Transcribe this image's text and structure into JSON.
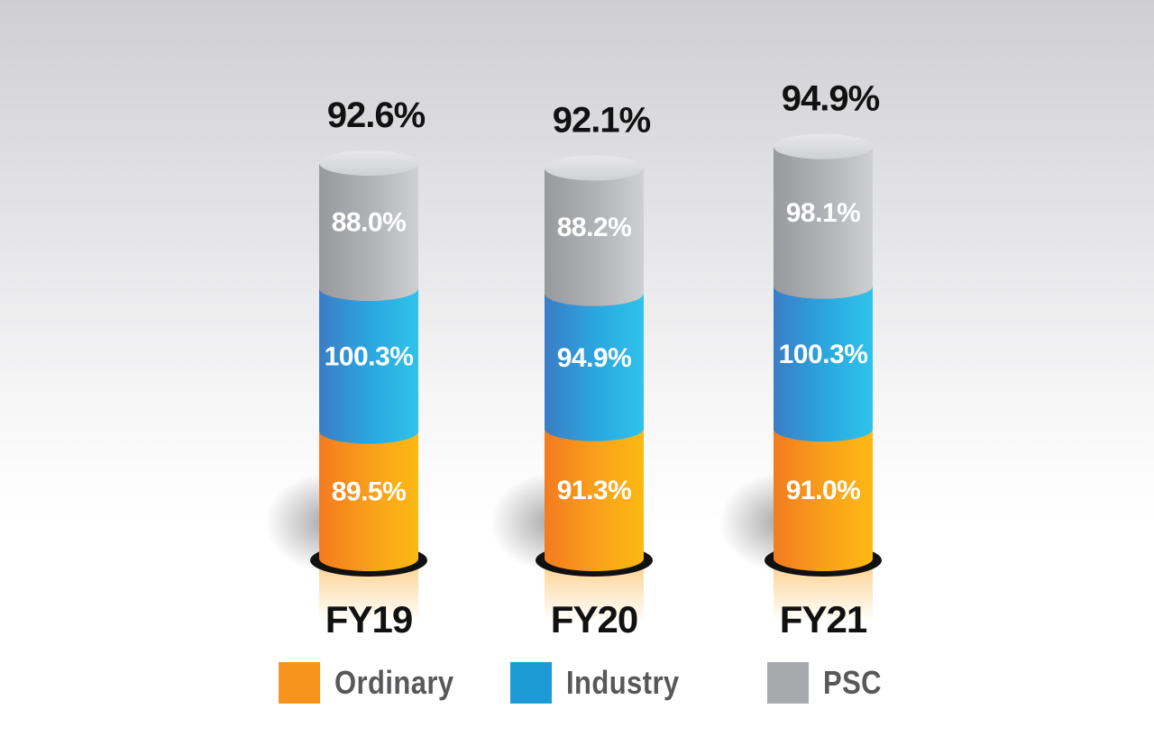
{
  "colors": {
    "ordinary": "#f7941d",
    "industry": "#1b9ad6",
    "psc": "#a7a9ac",
    "text_dark": "#111111",
    "text_light": "#ffffff"
  },
  "chart_data": {
    "type": "bar",
    "style": "stacked 3D cylinders",
    "categories": [
      "FY19",
      "FY20",
      "FY21"
    ],
    "totals": [
      "92.6%",
      "92.1%",
      "94.9%"
    ],
    "series": [
      {
        "name": "Ordinary",
        "values": [
          89.5,
          91.3,
          91.0
        ],
        "labels": [
          "89.5%",
          "91.3%",
          "91.0%"
        ]
      },
      {
        "name": "Industry",
        "values": [
          100.3,
          94.9,
          100.3
        ],
        "labels": [
          "100.3%",
          "94.9%",
          "100.3%"
        ]
      },
      {
        "name": "PSC",
        "values": [
          88.0,
          88.2,
          98.1
        ],
        "labels": [
          "88.0%",
          "88.2%",
          "98.1%"
        ]
      }
    ],
    "legend_position": "bottom"
  },
  "legend": [
    {
      "label": "Ordinary",
      "icon": "orange-square"
    },
    {
      "label": "Industry",
      "icon": "blue-square"
    },
    {
      "label": "PSC",
      "icon": "gray-square"
    }
  ]
}
